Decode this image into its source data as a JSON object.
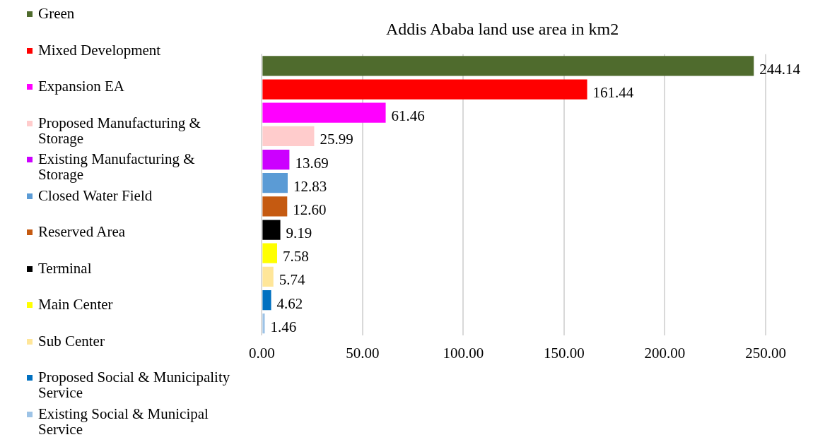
{
  "chart_data": {
    "type": "bar",
    "orientation": "horizontal",
    "title": "Addis Ababa land use area in km2",
    "categories": [
      null,
      null,
      null,
      null,
      null,
      null,
      null,
      null,
      null,
      null,
      null,
      null
    ],
    "series": [
      {
        "name": "Green",
        "color": "#4f6b2d",
        "values": [
          244.14,
          null,
          null,
          null,
          null,
          null,
          null,
          null,
          null,
          null,
          null,
          null
        ]
      },
      {
        "name": "Mixed Development",
        "color": "#ff0000",
        "values": [
          null,
          161.44,
          null,
          null,
          null,
          null,
          null,
          null,
          null,
          null,
          null,
          null
        ]
      },
      {
        "name": "Expansion EA",
        "color": "#ff00ff",
        "values": [
          null,
          null,
          61.46,
          null,
          null,
          null,
          null,
          null,
          null,
          null,
          null,
          null
        ]
      },
      {
        "name": "Proposed Manufacturing & Storage",
        "color": "#ffcccc",
        "values": [
          null,
          null,
          null,
          25.99,
          null,
          null,
          null,
          null,
          null,
          null,
          null,
          null
        ]
      },
      {
        "name": "Existing Manufacturing & Storage",
        "color": "#cc00ff",
        "values": [
          null,
          null,
          null,
          null,
          13.69,
          null,
          null,
          null,
          null,
          null,
          null,
          null
        ]
      },
      {
        "name": "Closed Water Field",
        "color": "#5b9bd5",
        "values": [
          null,
          null,
          null,
          null,
          null,
          12.83,
          null,
          null,
          null,
          null,
          null,
          null
        ]
      },
      {
        "name": "Reserved Area",
        "color": "#c55a11",
        "values": [
          null,
          null,
          null,
          null,
          null,
          null,
          12.6,
          null,
          null,
          null,
          null,
          null
        ]
      },
      {
        "name": "Terminal",
        "color": "#000000",
        "values": [
          null,
          null,
          null,
          null,
          null,
          null,
          null,
          9.19,
          null,
          null,
          null,
          null
        ]
      },
      {
        "name": "Main Center",
        "color": "#ffff00",
        "values": [
          null,
          null,
          null,
          null,
          null,
          null,
          null,
          null,
          7.58,
          null,
          null,
          null
        ]
      },
      {
        "name": "Sub Center",
        "color": "#ffe699",
        "values": [
          null,
          null,
          null,
          null,
          null,
          null,
          null,
          null,
          null,
          5.74,
          null,
          null
        ]
      },
      {
        "name": "Proposed Social & Municipality Service",
        "color": "#0070c0",
        "values": [
          null,
          null,
          null,
          null,
          null,
          null,
          null,
          null,
          null,
          null,
          4.62,
          null
        ]
      },
      {
        "name": "Existing Social & Municipal Service",
        "color": "#9dc3e6",
        "values": [
          null,
          null,
          null,
          null,
          null,
          null,
          null,
          null,
          null,
          null,
          null,
          1.46
        ]
      }
    ],
    "value_labels": [
      "244.14",
      "161.44",
      "61.46",
      "25.99",
      "13.69",
      "12.83",
      "12.60",
      "9.19",
      "7.58",
      "5.74",
      "4.62",
      "1.46"
    ],
    "xlim": [
      0,
      250
    ],
    "xticks": [
      {
        "value": 0,
        "label": "0.00"
      },
      {
        "value": 50,
        "label": "50.00"
      },
      {
        "value": 100,
        "label": "100.00"
      },
      {
        "value": 150,
        "label": "150.00"
      },
      {
        "value": 200,
        "label": "200.00"
      },
      {
        "value": 250,
        "label": "250.00"
      }
    ],
    "grid": "x",
    "legend": "left"
  }
}
